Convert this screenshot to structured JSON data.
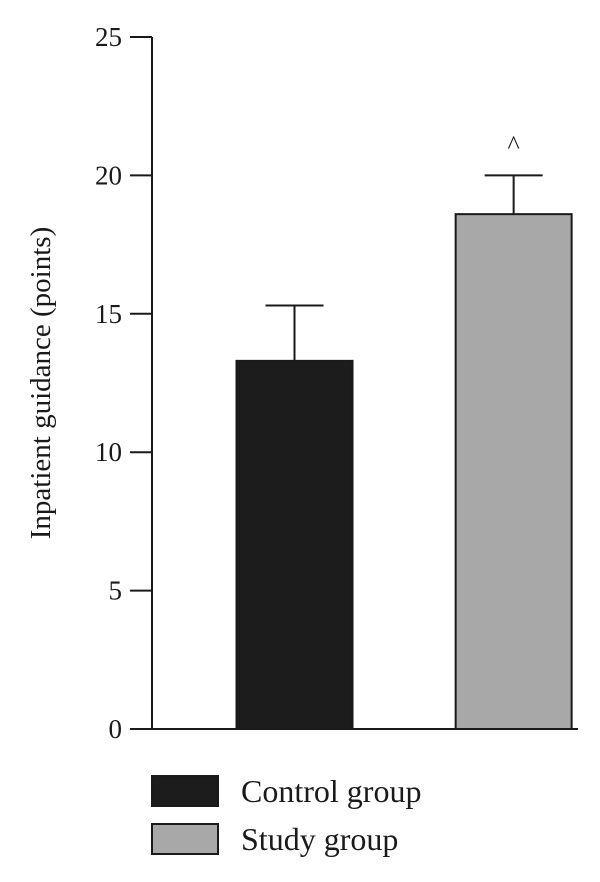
{
  "chart_data": {
    "type": "bar",
    "categories": [
      "Control group",
      "Study group"
    ],
    "values": [
      13.3,
      18.6
    ],
    "errors": [
      2.0,
      1.4
    ],
    "colors": [
      "#1c1c1c",
      "#a8a8a8"
    ],
    "ylabel": "Inpatient guidance (points)",
    "xlabel": "",
    "ylim": [
      0,
      25
    ],
    "yticks": [
      "0",
      "5",
      "10",
      "15",
      "20",
      "25"
    ],
    "grid": false,
    "annotations": [
      {
        "category": "Study group",
        "text": "^"
      }
    ],
    "legend": {
      "placement": "bottom",
      "entries": [
        {
          "label": "Control group",
          "color": "#1c1c1c"
        },
        {
          "label": "Study group",
          "color": "#a8a8a8"
        }
      ]
    }
  }
}
